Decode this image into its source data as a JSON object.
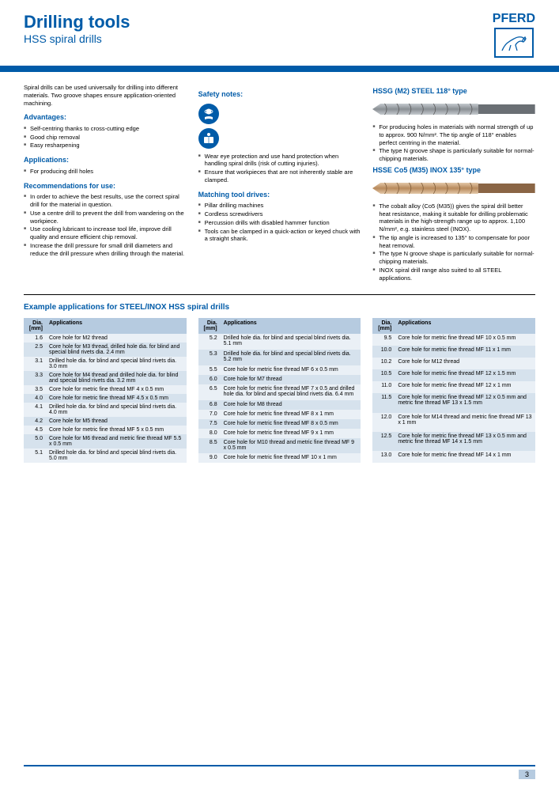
{
  "header": {
    "title": "Drilling tools",
    "subtitle": "HSS spiral drills",
    "brand": "PFERD"
  },
  "intro": "Spiral drills can be used universally for drilling into different materials. Two groove shapes ensure application-oriented machining.",
  "advantages": {
    "heading": "Advantages:",
    "items": [
      "Self-centring thanks to cross-cutting edge",
      "Good chip removal",
      "Easy resharpening"
    ]
  },
  "applications": {
    "heading": "Applications:",
    "items": [
      "For producing drill holes"
    ]
  },
  "recommendations": {
    "heading": "Recommendations for use:",
    "items": [
      "In order to achieve the best results, use the correct spiral drill for the material in question.",
      "Use a centre drill to prevent the drill from wandering on the workpiece.",
      "Use cooling lubricant to increase tool life, improve drill quality and ensure efficient chip removal.",
      "Increase the drill pressure for small drill diameters and reduce the drill pressure when drilling through the material."
    ]
  },
  "safety": {
    "heading": "Safety notes:",
    "items": [
      "Wear eye protection and use hand protection when handling spiral drills (risk of cutting injuries).",
      "Ensure that workpieces that are not inherently stable are clamped."
    ]
  },
  "drives": {
    "heading": "Matching tool drives:",
    "items": [
      "Pillar drilling machines",
      "Cordless screwdrivers",
      "Percussion drills with disabled hammer function",
      "Tools can be clamped in a quick-action or keyed chuck with a straight shank."
    ]
  },
  "type1": {
    "heading": "HSSG (M2) STEEL 118° type",
    "items": [
      "For producing holes in materials with normal strength of up to approx. 900 N/mm². The tip angle of 118° enables perfect centring in the material.",
      "The type N groove shape is particularly suitable for normal-chipping materials."
    ],
    "drill_body": "#8a8f94",
    "drill_body_light": "#c5cacf",
    "drill_shank": "#6a6f74"
  },
  "type2": {
    "heading": "HSSE Co5 (M35) INOX 135° type",
    "items": [
      "The cobalt alloy (Co5 (M35)) gives the spiral drill better heat resistance, making it suitable for drilling problematic materials in the high-strength range up to approx. 1,100 N/mm², e.g. stainless steel (INOX).",
      "The tip angle is increased to 135° to compensate for poor heat removal.",
      "The type N groove shape is particularly suitable for normal-chipping materials.",
      "INOX spiral drill range also suited to all STEEL applications."
    ],
    "drill_body": "#b88a5c",
    "drill_body_light": "#e3c8a8",
    "drill_shank": "#8a6545"
  },
  "example_heading": "Example applications for STEEL/INOX HSS spiral drills",
  "table_headers": {
    "dia": "Dia. [mm]",
    "app": "Applications"
  },
  "table1": [
    {
      "d": "1.6",
      "a": "Core hole for M2 thread"
    },
    {
      "d": "2.5",
      "a": "Core hole for M3 thread, drilled hole dia. for blind and special blind rivets dia. 2.4 mm"
    },
    {
      "d": "3.1",
      "a": "Drilled hole dia. for blind and special blind rivets dia. 3.0 mm"
    },
    {
      "d": "3.3",
      "a": "Core hole for M4 thread and drilled hole dia. for blind and special blind rivets dia. 3.2 mm"
    },
    {
      "d": "3.5",
      "a": "Core hole for metric fine thread MF 4 x 0.5 mm"
    },
    {
      "d": "4.0",
      "a": "Core hole for metric fine thread MF 4.5 x 0.5 mm"
    },
    {
      "d": "4.1",
      "a": "Drilled hole dia. for blind and special blind rivets dia. 4.0 mm"
    },
    {
      "d": "4.2",
      "a": "Core hole for M5 thread"
    },
    {
      "d": "4.5",
      "a": "Core hole for metric fine thread MF 5 x 0.5 mm"
    },
    {
      "d": "5.0",
      "a": "Core hole for M6 thread and metric fine thread MF 5.5 x 0.5 mm"
    },
    {
      "d": "5.1",
      "a": "Drilled hole dia. for blind and special blind rivets dia. 5.0 mm"
    }
  ],
  "table2": [
    {
      "d": "5.2",
      "a": "Drilled hole dia. for blind and special blind rivets dia. 5.1 mm"
    },
    {
      "d": "5.3",
      "a": "Drilled hole dia. for blind and special blind rivets dia. 5.2 mm"
    },
    {
      "d": "5.5",
      "a": "Core hole for metric fine thread MF 6 x 0.5 mm"
    },
    {
      "d": "6.0",
      "a": "Core hole for M7 thread"
    },
    {
      "d": "6.5",
      "a": "Core hole for metric fine thread MF 7 x 0.5 and drilled hole dia. for blind and special blind rivets dia. 6.4 mm"
    },
    {
      "d": "6.8",
      "a": "Core hole for M8 thread"
    },
    {
      "d": "7.0",
      "a": "Core hole for metric fine thread MF 8 x 1 mm"
    },
    {
      "d": "7.5",
      "a": "Core hole for metric fine thread MF 8 x 0.5 mm"
    },
    {
      "d": "8.0",
      "a": "Core hole for metric fine thread MF 9 x 1 mm"
    },
    {
      "d": "8.5",
      "a": "Core hole for M10 thread and metric fine thread MF 9 x 0.5 mm"
    },
    {
      "d": "9.0",
      "a": "Core hole for metric fine thread MF 10 x 1 mm"
    }
  ],
  "table3": [
    {
      "d": "9.5",
      "a": "Core hole for metric fine thread MF 10 x 0.5 mm"
    },
    {
      "d": "10.0",
      "a": "Core hole for metric fine thread MF 11 x 1 mm"
    },
    {
      "d": "10.2",
      "a": "Core hole for M12 thread"
    },
    {
      "d": "10.5",
      "a": "Core hole for metric fine thread MF 12 x 1.5 mm"
    },
    {
      "d": "11.0",
      "a": "Core hole for metric fine thread MF 12 x 1 mm"
    },
    {
      "d": "11.5",
      "a": "Core hole for metric fine thread MF 12 x 0.5 mm and metric fine thread MF 13 x 1.5 mm"
    },
    {
      "d": "12.0",
      "a": "Core hole for M14 thread and metric fine thread MF 13 x 1 mm"
    },
    {
      "d": "12.5",
      "a": "Core hole for metric fine thread MF 13 x 0.5 mm and metric fine thread MF 14 x 1.5 mm"
    },
    {
      "d": "13.0",
      "a": "Core hole for metric fine thread MF 14 x 1 mm"
    }
  ],
  "page_number": "3",
  "colors": {
    "brand_blue": "#005ba8",
    "th_bg": "#b6cbe0",
    "row_odd": "#eaf0f6",
    "row_even": "#d6e2ed"
  }
}
